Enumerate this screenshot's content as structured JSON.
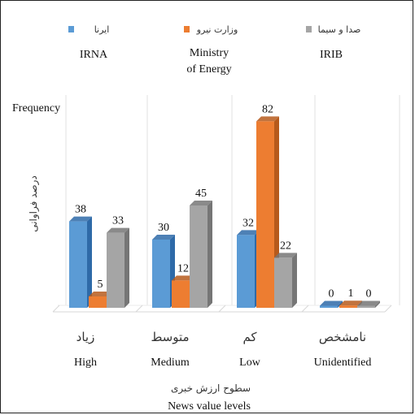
{
  "chart_data": {
    "type": "bar",
    "ylabel_en": "Frequency",
    "ylabel_fa": "درصد فراوانی",
    "xlabel_fa": "سطوح ارزش خبری",
    "xlabel_en": "News value levels",
    "categories": [
      {
        "fa": "زیاد",
        "en": "High"
      },
      {
        "fa": "متوسط",
        "en": "Medium"
      },
      {
        "fa": "کم",
        "en": "Low"
      },
      {
        "fa": "نامشخص",
        "en": "Unidentified"
      }
    ],
    "series": [
      {
        "name_fa": "ایرنا",
        "name_en": "IRNA",
        "color": "#5b9bd5",
        "side_color": "#2e6aa8",
        "values": [
          38,
          30,
          32,
          0
        ]
      },
      {
        "name_fa": "وزارت نیرو",
        "name_en": "Ministry of Energy",
        "color": "#ed7d31",
        "side_color": "#b65a1c",
        "values": [
          5,
          12,
          82,
          1
        ]
      },
      {
        "name_fa": "صدا و سیما",
        "name_en": "IRIB",
        "color": "#a5a5a5",
        "side_color": "#767676",
        "values": [
          33,
          45,
          22,
          0
        ]
      }
    ],
    "ylim": [
      0,
      90
    ],
    "grid": false,
    "legend_position": "top"
  }
}
